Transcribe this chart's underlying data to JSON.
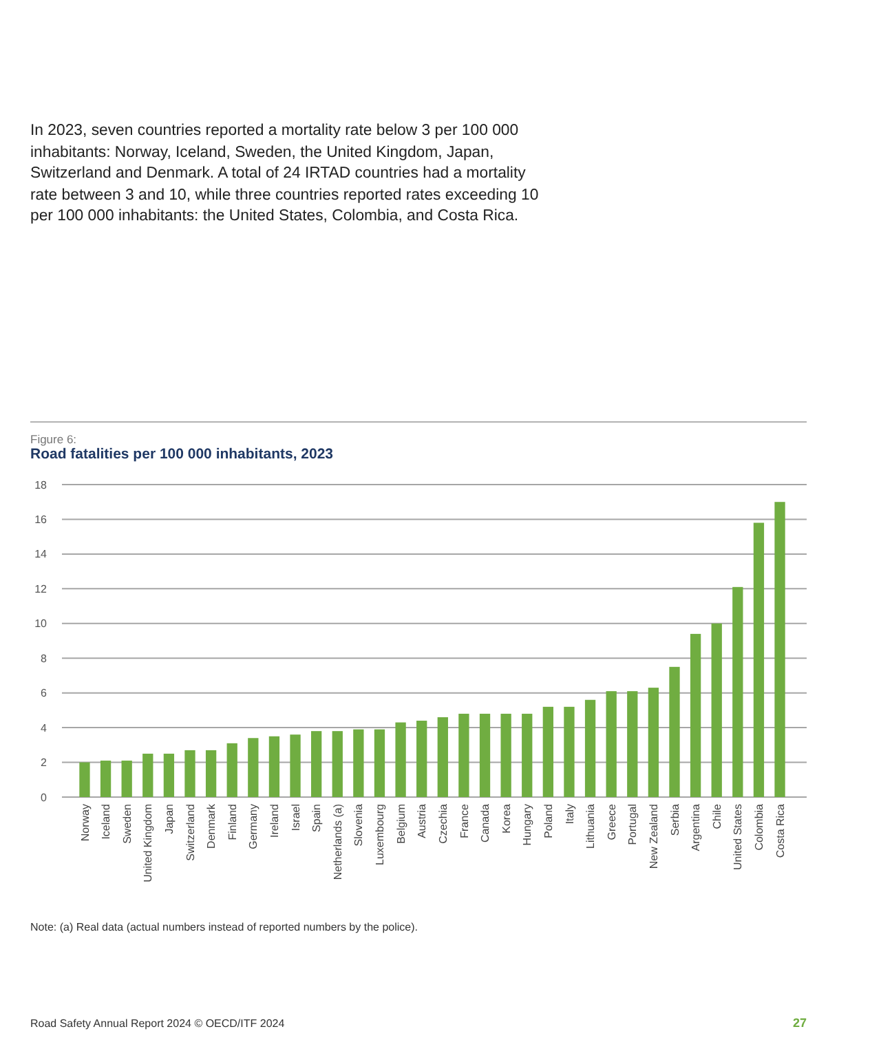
{
  "chart_data": {
    "type": "bar",
    "title": "Road fatalities per 100 000 inhabitants, 2023",
    "subtitle": "Figure 6:",
    "categories": [
      "Norway",
      "Iceland",
      "Sweden",
      "United Kingdom",
      "Japan",
      "Switzerland",
      "Denmark",
      "Finland",
      "Germany",
      "Ireland",
      "Israel",
      "Spain",
      "Netherlands (a)",
      "Slovenia",
      "Luxembourg",
      "Belgium",
      "Austria",
      "Czechia",
      "France",
      "Canada",
      "Korea",
      "Hungary",
      "Poland",
      "Italy",
      "Lithuania",
      "Greece",
      "Portugal",
      "New Zealand",
      "Serbia",
      "Argentina",
      "Chile",
      "United States",
      "Colombia",
      "Costa Rica"
    ],
    "values": [
      2.0,
      2.1,
      2.1,
      2.5,
      2.5,
      2.7,
      2.7,
      3.1,
      3.4,
      3.5,
      3.6,
      3.8,
      3.8,
      3.9,
      3.9,
      4.3,
      4.4,
      4.6,
      4.8,
      4.8,
      4.8,
      4.8,
      5.2,
      5.2,
      5.6,
      6.1,
      6.1,
      6.3,
      7.5,
      9.4,
      10.0,
      12.1,
      15.8,
      17.0
    ],
    "color": "#70ad41",
    "ylim": [
      0,
      18
    ],
    "yticks": [
      0,
      2,
      4,
      6,
      8,
      10,
      12,
      14,
      16,
      18
    ],
    "grid": "y",
    "annotations": [
      "In 2023, seven countries reported a mortality rate below 3 per 100 000 inhabitants: Norway, Iceland, Sweden, the United Kingdom, Japan, Switzerland and Denmark. A total of 24 IRTAD countries had a mortality rate between 3 and 10, while three countries reported rates exceeding 10 per 100 000 inhabitants: the United States, Colombia, and Costa Rica.",
      "Note: (a) Real data (actual numbers instead of reported numbers by the police).",
      "Road Safety Annual Report 2024 © OECD/ITF 2024",
      "27"
    ]
  }
}
